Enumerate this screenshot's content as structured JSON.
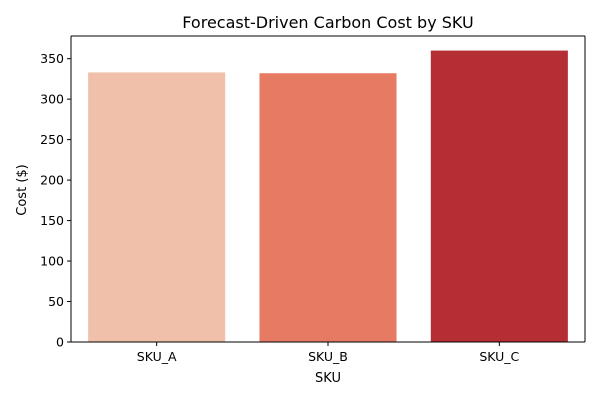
{
  "chart_data": {
    "type": "bar",
    "title": "Forecast-Driven Carbon Cost by SKU",
    "xlabel": "SKU",
    "ylabel": "Cost ($)",
    "categories": [
      "SKU_A",
      "SKU_B",
      "SKU_C"
    ],
    "values": [
      333,
      332,
      360
    ],
    "colors": [
      "#f0c0aa",
      "#e77a62",
      "#b52e33"
    ],
    "ylim": [
      0,
      378
    ],
    "yticks": [
      0,
      50,
      100,
      150,
      200,
      250,
      300,
      350
    ],
    "grid": false,
    "legend": "none"
  }
}
